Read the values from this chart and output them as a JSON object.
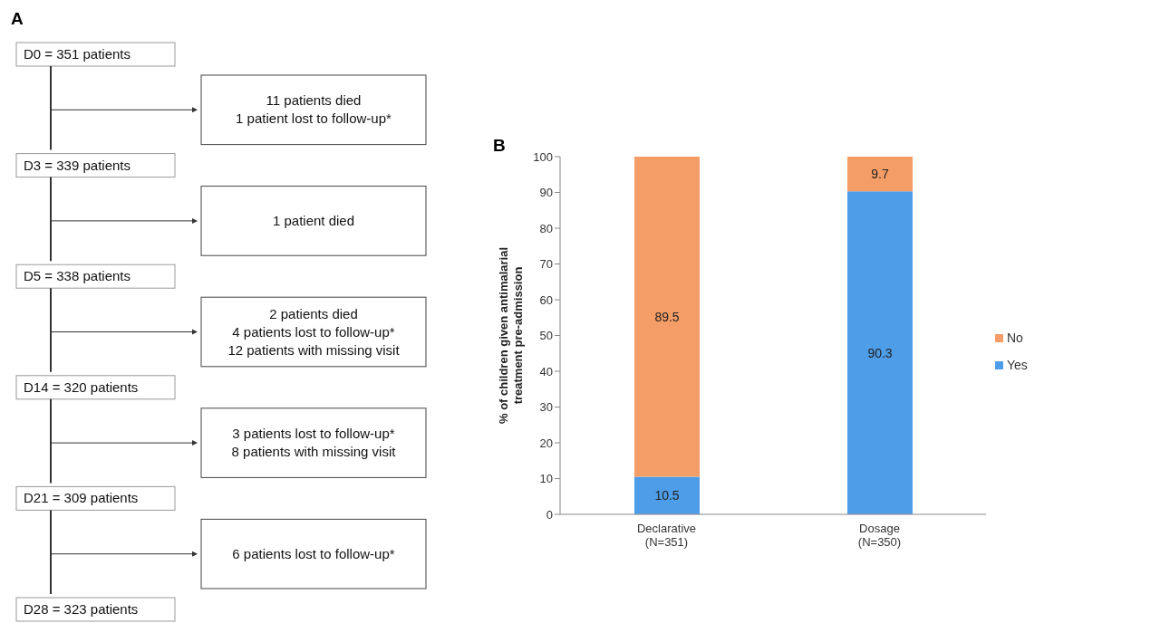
{
  "chart_data": [
    {
      "type": "other",
      "title": "A",
      "annotations": [
        "D0 = 351 patients",
        "11 patients died\n1 patient lost to follow-up*",
        "D3 = 339 patients",
        "1 patient died",
        "D5 = 338 patients",
        "2 patients died\n4 patients lost to follow-up*\n12 patients with missing visit",
        "D14 = 320 patients",
        "3 patients lost to follow-up*\n8 patients with missing visit",
        "D21 = 309 patients",
        "6 patients lost to follow-up*",
        "D28 = 323 patients"
      ]
    },
    {
      "type": "bar",
      "title": "B",
      "stacked": true,
      "ylabel": "% of children given antimalarial treatment pre-admission",
      "categories": [
        "Declarative\n(N=351)",
        "Dosage\n(N=350)"
      ],
      "series": [
        {
          "name": "Yes",
          "color": "#4d9de8",
          "values": [
            10.5,
            90.3
          ]
        },
        {
          "name": "No",
          "color": "#f59d66",
          "values": [
            89.5,
            9.7
          ]
        }
      ],
      "ylim": [
        0,
        100
      ],
      "yticks": [
        0,
        10,
        20,
        30,
        40,
        50,
        60,
        70,
        80,
        90,
        100
      ],
      "grid": false,
      "legend": "right",
      "data_labels": true
    }
  ]
}
